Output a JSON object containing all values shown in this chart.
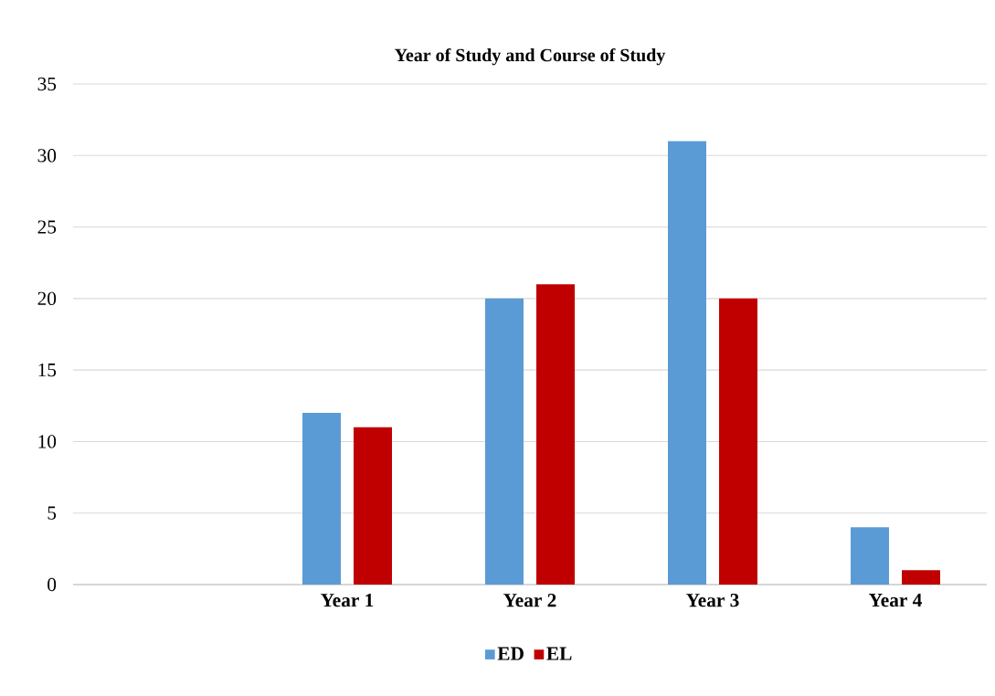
{
  "chart_data": {
    "type": "bar",
    "title": "Year of Study and Course of Study",
    "categories": [
      null,
      "Year 1",
      "Year 2",
      "Year 3",
      "Year 4"
    ],
    "series": [
      {
        "name": "ED",
        "color": "#5b9bd5",
        "values": [
          null,
          12,
          20,
          31,
          4
        ]
      },
      {
        "name": "EL",
        "color": "#c00000",
        "values": [
          null,
          11,
          21,
          20,
          1
        ]
      }
    ],
    "ylim": [
      0,
      35
    ],
    "yticks": [
      0,
      5,
      10,
      15,
      20,
      25,
      30,
      35
    ],
    "grid": "y",
    "legend": "bottom"
  }
}
